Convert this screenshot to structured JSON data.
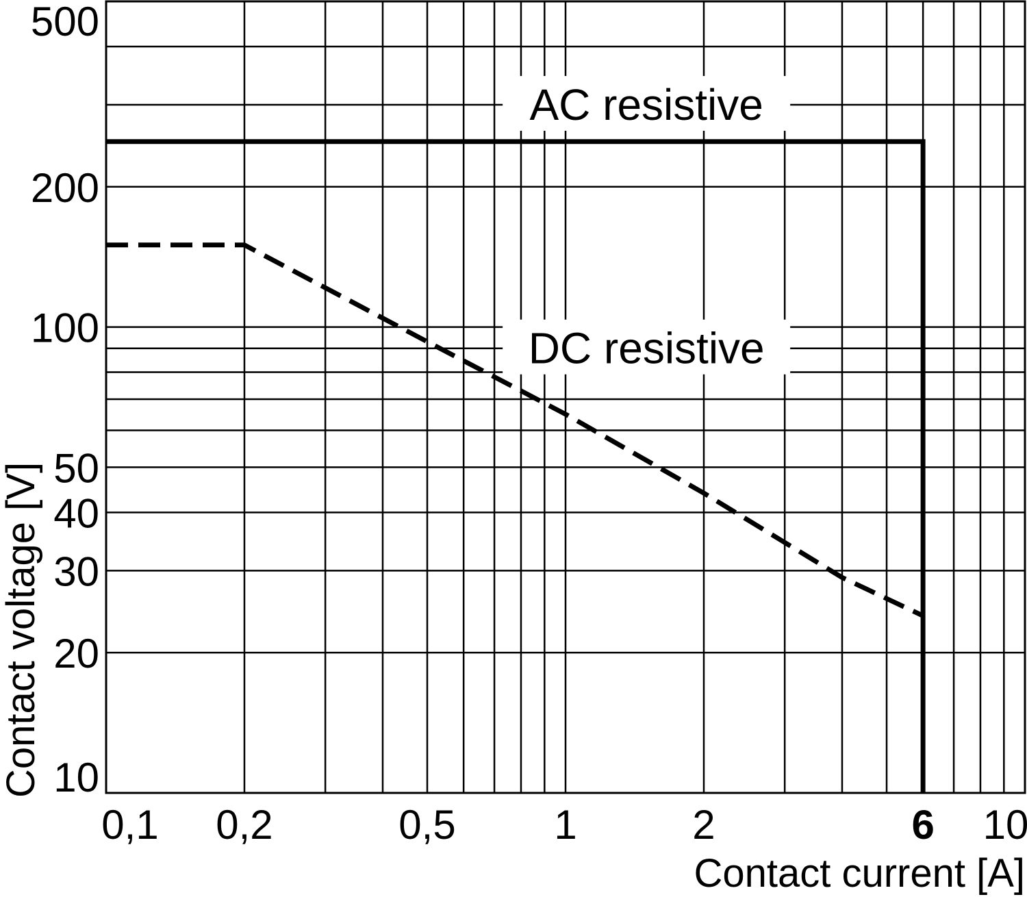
{
  "chart_data": {
    "type": "line",
    "xlabel": "Contact current [A]",
    "ylabel": "Contact voltage [V]",
    "x_scale": "log",
    "y_scale": "log",
    "xlim": [
      0.1,
      10
    ],
    "ylim": [
      10,
      500
    ],
    "grid": true,
    "x_gridlines": [
      0.2,
      0.3,
      0.4,
      0.5,
      0.6,
      0.7,
      0.8,
      0.9,
      1,
      2,
      3,
      4,
      5,
      6,
      7,
      8,
      9
    ],
    "y_gridlines": [
      20,
      30,
      40,
      50,
      60,
      70,
      80,
      90,
      100,
      200,
      300,
      400
    ],
    "x_ticks": [
      {
        "value": 0.1,
        "label": "0,1"
      },
      {
        "value": 0.2,
        "label": "0,2"
      },
      {
        "value": 0.5,
        "label": "0,5"
      },
      {
        "value": 1,
        "label": "1"
      },
      {
        "value": 2,
        "label": "2"
      },
      {
        "value": 6,
        "label": "6",
        "bold": true
      },
      {
        "value": 10,
        "label": "10"
      }
    ],
    "y_ticks": [
      {
        "value": 10,
        "label": "10"
      },
      {
        "value": 20,
        "label": "20"
      },
      {
        "value": 30,
        "label": "30"
      },
      {
        "value": 40,
        "label": "40"
      },
      {
        "value": 50,
        "label": "50"
      },
      {
        "value": 100,
        "label": "100"
      },
      {
        "value": 200,
        "label": "200"
      },
      {
        "value": 500,
        "label": "500"
      }
    ],
    "series": [
      {
        "name": "AC resistive",
        "style": "solid",
        "label_at": [
          1.5,
          300
        ],
        "points": [
          [
            0.1,
            250
          ],
          [
            6,
            250
          ],
          [
            6,
            10
          ]
        ]
      },
      {
        "name": "DC resistive",
        "style": "dashed",
        "label_at": [
          1.5,
          90
        ],
        "points": [
          [
            0.1,
            150
          ],
          [
            0.2,
            150
          ],
          [
            0.5,
            93
          ],
          [
            1,
            65
          ],
          [
            2,
            44
          ],
          [
            4,
            29
          ],
          [
            6,
            24
          ]
        ]
      }
    ],
    "colors": {
      "lines": "#000000",
      "grid": "#000000",
      "background": "#ffffff"
    }
  }
}
